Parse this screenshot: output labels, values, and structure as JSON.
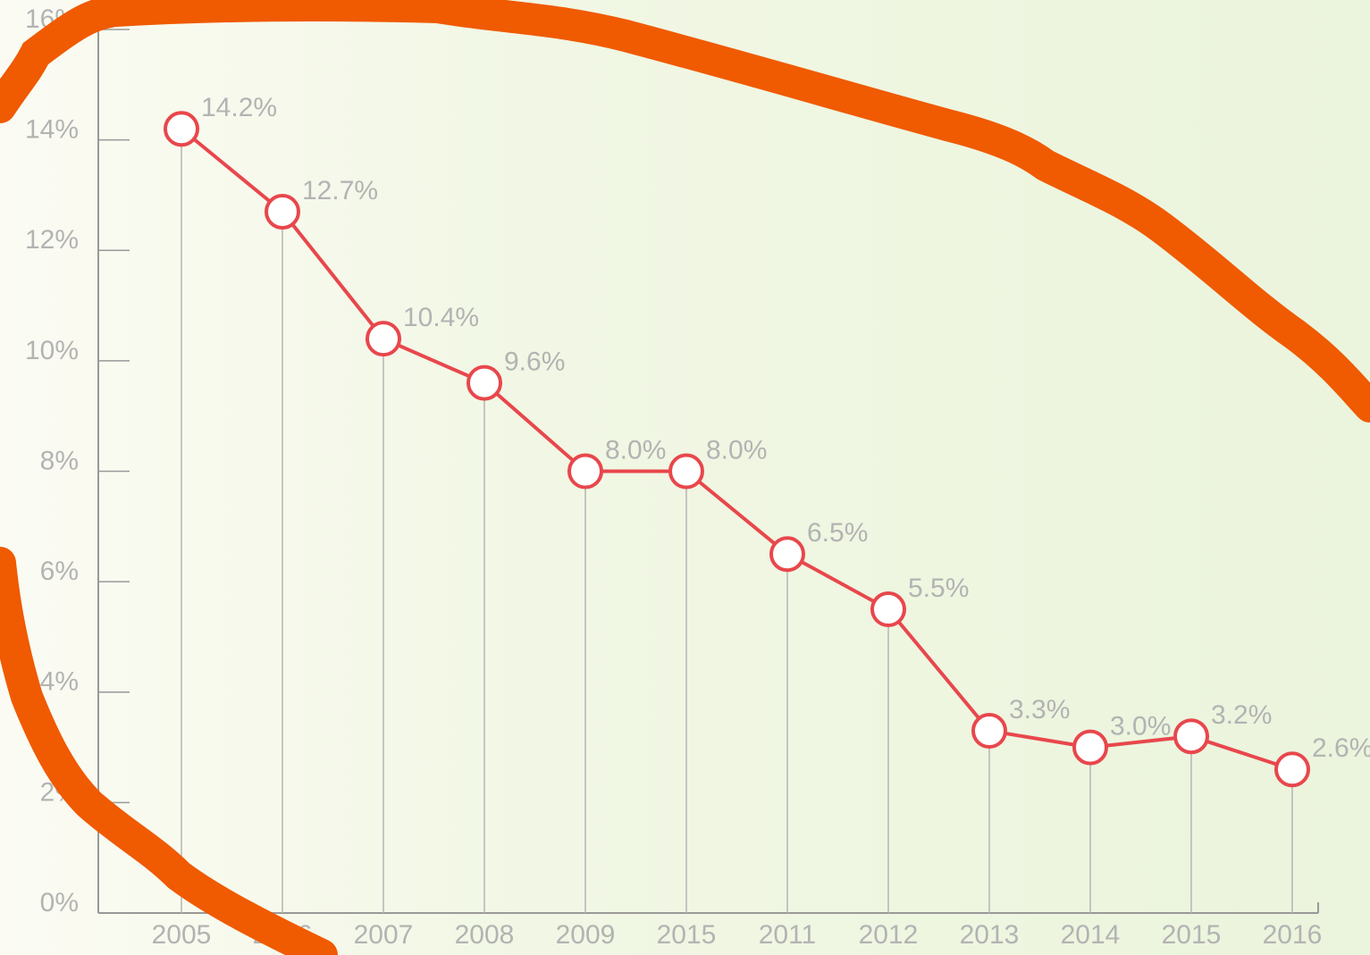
{
  "chart_data": {
    "type": "line",
    "categories": [
      "2005",
      "2006",
      "2007",
      "2008",
      "2009",
      "2015",
      "2011",
      "2012",
      "2013",
      "2014",
      "2015",
      "2016"
    ],
    "values": [
      14.2,
      12.7,
      10.4,
      9.6,
      8.0,
      8.0,
      6.5,
      5.5,
      3.3,
      3.0,
      3.2,
      2.6
    ],
    "value_labels": [
      "14.2%",
      "12.7%",
      "10.4%",
      "9.6%",
      "8.0%",
      "8.0%",
      "6.5%",
      "5.5%",
      "3.3%",
      "3.0%",
      "3.2%",
      "2.6%"
    ],
    "color": "#e8474c",
    "ylim": [
      0,
      16
    ],
    "yticks": [
      {
        "value": 0,
        "label": "0%"
      },
      {
        "value": 2,
        "label": "2%"
      },
      {
        "value": 4,
        "label": "4%"
      },
      {
        "value": 6,
        "label": "6%"
      },
      {
        "value": 8,
        "label": "8%"
      },
      {
        "value": 10,
        "label": "10%"
      },
      {
        "value": 12,
        "label": "12%"
      },
      {
        "value": 14,
        "label": "14%"
      },
      {
        "value": 16,
        "label": "16%"
      }
    ],
    "grid": false
  }
}
